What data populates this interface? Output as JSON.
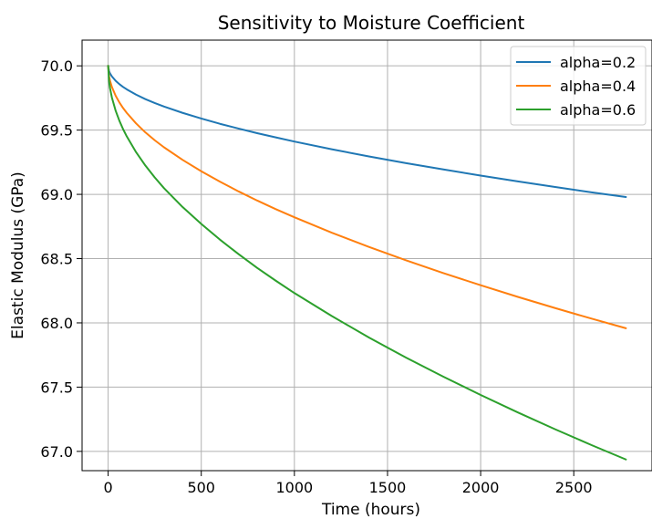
{
  "chart_data": {
    "type": "line",
    "title": "Sensitivity to Moisture Coefficient",
    "xlabel": "Time (hours)",
    "ylabel": "Elastic Modulus (GPa)",
    "xlim": [
      -140,
      2920
    ],
    "ylim": [
      66.85,
      70.2
    ],
    "x_ticks": [
      0,
      500,
      1000,
      1500,
      2000,
      2500
    ],
    "y_ticks": [
      67.0,
      67.5,
      68.0,
      68.5,
      69.0,
      69.5,
      70.0
    ],
    "x_tick_labels": [
      "0",
      "500",
      "1000",
      "1500",
      "2000",
      "2500"
    ],
    "y_tick_labels": [
      "67.0",
      "67.5",
      "68.0",
      "68.5",
      "69.0",
      "69.5",
      "70.0"
    ],
    "grid": true,
    "legend_position": "top-right",
    "x": [
      0,
      5,
      10,
      20,
      40,
      60,
      80,
      100,
      150,
      200,
      250,
      300,
      400,
      500,
      600,
      700,
      800,
      900,
      1000,
      1200,
      1400,
      1600,
      1800,
      2000,
      2200,
      2400,
      2600,
      2780
    ],
    "series": [
      {
        "name": "alpha=0.2",
        "color": "#1f77b4",
        "values": [
          70.0,
          69.959,
          69.942,
          69.918,
          69.884,
          69.858,
          69.836,
          69.817,
          69.776,
          69.741,
          69.711,
          69.683,
          69.634,
          69.59,
          69.549,
          69.512,
          69.476,
          69.443,
          69.411,
          69.351,
          69.295,
          69.243,
          69.194,
          69.146,
          69.101,
          69.057,
          69.015,
          68.979
        ]
      },
      {
        "name": "alpha=0.4",
        "color": "#ff7f0e",
        "values": [
          70.0,
          69.918,
          69.884,
          69.836,
          69.768,
          69.716,
          69.672,
          69.634,
          69.552,
          69.482,
          69.421,
          69.366,
          69.268,
          69.18,
          69.099,
          69.023,
          68.952,
          68.885,
          68.822,
          68.702,
          68.591,
          68.486,
          68.387,
          68.293,
          68.202,
          68.115,
          68.031,
          67.958
        ]
      },
      {
        "name": "alpha=0.6",
        "color": "#2ca02c",
        "values": [
          70.0,
          69.877,
          69.826,
          69.754,
          69.652,
          69.574,
          69.508,
          69.451,
          69.328,
          69.224,
          69.132,
          69.048,
          68.901,
          68.77,
          68.648,
          68.535,
          68.428,
          68.328,
          68.232,
          68.054,
          67.886,
          67.729,
          67.581,
          67.439,
          67.303,
          67.172,
          67.046,
          66.937
        ]
      }
    ]
  }
}
